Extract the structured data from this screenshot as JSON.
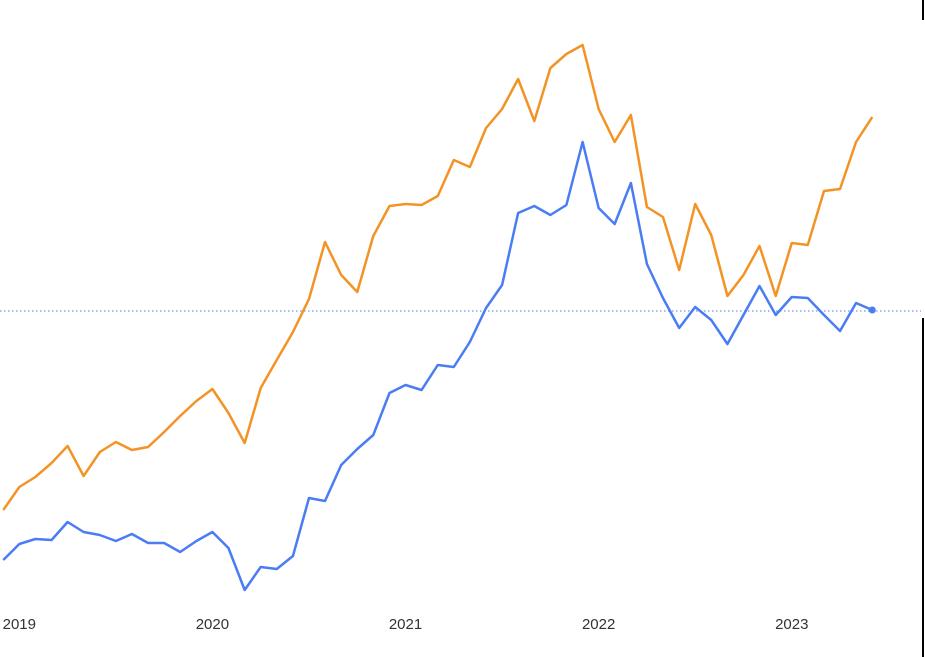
{
  "chart_data": {
    "type": "line",
    "x": [
      2018.917,
      2019,
      2019.083,
      2019.167,
      2019.25,
      2019.333,
      2019.417,
      2019.5,
      2019.583,
      2019.667,
      2019.75,
      2019.833,
      2019.917,
      2020,
      2020.083,
      2020.167,
      2020.25,
      2020.333,
      2020.417,
      2020.5,
      2020.583,
      2020.667,
      2020.75,
      2020.833,
      2020.917,
      2021,
      2021.083,
      2021.167,
      2021.25,
      2021.333,
      2021.417,
      2021.5,
      2021.583,
      2021.667,
      2021.75,
      2021.833,
      2021.917,
      2022,
      2022.083,
      2022.167,
      2022.25,
      2022.333,
      2022.417,
      2022.5,
      2022.583,
      2022.667,
      2022.75,
      2022.833,
      2022.917,
      2023,
      2023.083,
      2023.167,
      2023.25,
      2023.333,
      2023.417
    ],
    "series": [
      {
        "color": "#f39325",
        "values": [
          147,
          170,
          180,
          194,
          211,
          181,
          205,
          215,
          207,
          210,
          225,
          241,
          256,
          268,
          244,
          214,
          269,
          297,
          325,
          358,
          415,
          382,
          365,
          421,
          451,
          453,
          452,
          461,
          497,
          490,
          529,
          548,
          578,
          536,
          589,
          603,
          612,
          548,
          515,
          542,
          450,
          440,
          387,
          453,
          422,
          361,
          382,
          411,
          361,
          414,
          412,
          466,
          468,
          515,
          540
        ]
      },
      {
        "color": "#4a7cf4",
        "values": [
          97,
          113,
          118,
          117,
          135,
          125,
          122,
          116,
          123,
          114,
          114,
          105,
          116,
          125,
          109,
          67,
          90,
          88,
          101,
          159,
          156,
          192,
          208,
          222,
          264,
          272,
          267,
          292,
          290,
          315,
          349,
          372,
          444,
          451,
          442,
          452,
          515,
          449,
          433,
          474,
          393,
          359,
          329,
          350,
          337,
          313,
          342,
          371,
          342,
          360,
          359,
          342,
          326,
          354,
          347
        ]
      }
    ],
    "reference_line": 346,
    "xlim": [
      2018.9,
      2023.69
    ],
    "xticks": [
      2019,
      2020,
      2021,
      2022,
      2023
    ],
    "ylim": [
      0,
      657
    ]
  }
}
